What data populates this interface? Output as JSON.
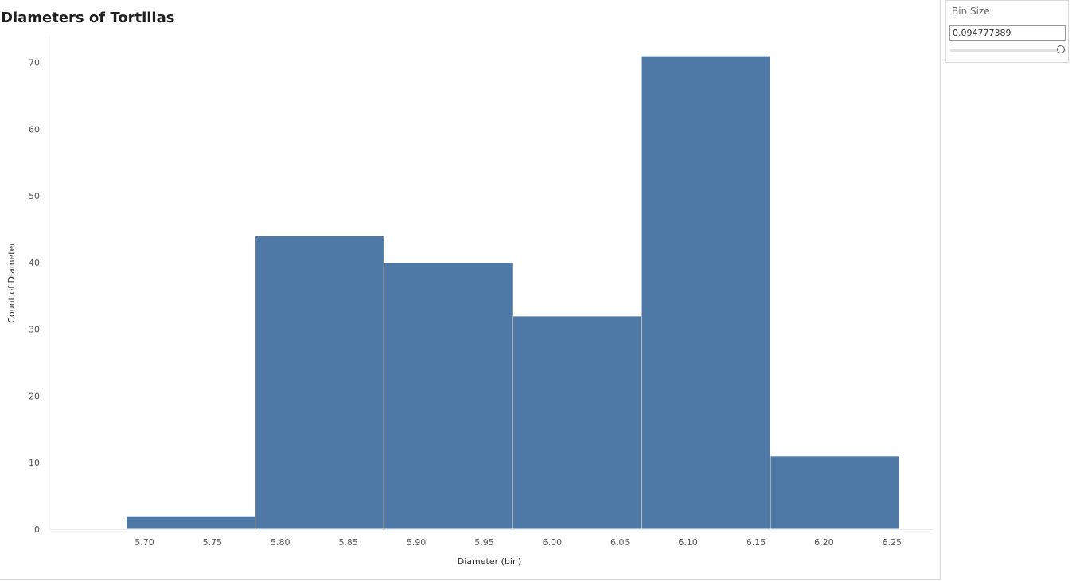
{
  "parameter": {
    "title": "Bin Size",
    "value": "0.094777389",
    "slider_fraction": 0.95
  },
  "chart_data": {
    "type": "bar",
    "title": "Diameters of Tortillas",
    "xlabel": "Diameter (bin)",
    "ylabel": "Count of Diameter",
    "bin_size": 0.094777389,
    "bins": [
      {
        "start": 5.6866,
        "count": 2
      },
      {
        "start": 5.7814,
        "count": 44
      },
      {
        "start": 5.8762,
        "count": 40
      },
      {
        "start": 5.9709,
        "count": 32
      },
      {
        "start": 6.0657,
        "count": 71
      },
      {
        "start": 6.1605,
        "count": 11
      }
    ],
    "x_ticks": [
      "5.70",
      "5.75",
      "5.80",
      "5.85",
      "5.90",
      "5.95",
      "6.00",
      "6.05",
      "6.10",
      "6.15",
      "6.20",
      "6.25"
    ],
    "y_ticks": [
      "0",
      "10",
      "20",
      "30",
      "40",
      "50",
      "60",
      "70"
    ],
    "xlim": [
      5.63,
      6.28
    ],
    "ylim": [
      0,
      74
    ],
    "bar_color": "#4e79a7",
    "grid": false
  }
}
